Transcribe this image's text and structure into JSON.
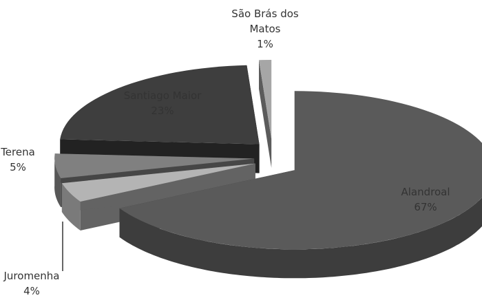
{
  "chart_data": {
    "type": "pie3d",
    "categories": [
      "Alandroal",
      "Juromenha",
      "Terena",
      "Santiago Maior",
      "São Brás dos Matos"
    ],
    "values": [
      67,
      4,
      5,
      23,
      1
    ],
    "value_labels": [
      "67%",
      "4%",
      "5%",
      "23%",
      "1%"
    ],
    "colors": [
      "#5a5a5a",
      "#b4b4b4",
      "#808080",
      "#3e3e3e",
      "#a6a6a6"
    ]
  }
}
